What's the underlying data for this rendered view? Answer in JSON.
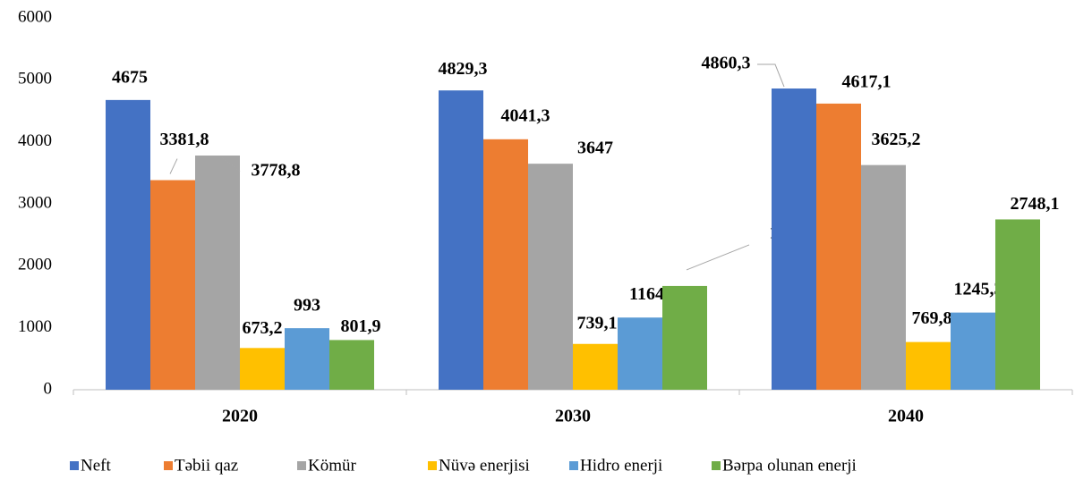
{
  "chart_data": {
    "type": "bar",
    "categories": [
      "2020",
      "2030",
      "2040"
    ],
    "series": [
      {
        "name": "Neft",
        "color": "#4472c4",
        "values": [
          4675,
          4829.3,
          4860.3
        ],
        "value_labels": [
          "4675",
          "4829,3",
          "4860,3"
        ]
      },
      {
        "name": "Təbii qaz",
        "color": "#ed7d31",
        "values": [
          3381.8,
          4041.3,
          4617.1
        ],
        "value_labels": [
          "3381,8",
          "4041,3",
          "4617,1"
        ]
      },
      {
        "name": "Kömür",
        "color": "#a5a5a5",
        "values": [
          3778.8,
          3647,
          3625.2
        ],
        "value_labels": [
          "3778,8",
          "3647",
          "3625,2"
        ]
      },
      {
        "name": "Nüvə enerjisi",
        "color": "#ffc000",
        "values": [
          673.2,
          739.1,
          769.8
        ],
        "value_labels": [
          "673,2",
          "739,1",
          "769,8"
        ]
      },
      {
        "name": "Hidro enerji",
        "color": "#5b9bd5",
        "values": [
          993,
          1164.5,
          1245.3
        ],
        "value_labels": [
          "993",
          "1164,5",
          "1245,3"
        ]
      },
      {
        "name": "Bərpa olunan enerji",
        "color": "#70ad47",
        "values": [
          801.9,
          1674.1,
          2748.1
        ],
        "value_labels": [
          "801,9",
          "1674,1",
          "2748,1"
        ]
      }
    ],
    "ylim": [
      0,
      6000
    ],
    "yticks": [
      0,
      1000,
      2000,
      3000,
      4000,
      5000,
      6000
    ],
    "grid": false,
    "legend": "bottom"
  }
}
